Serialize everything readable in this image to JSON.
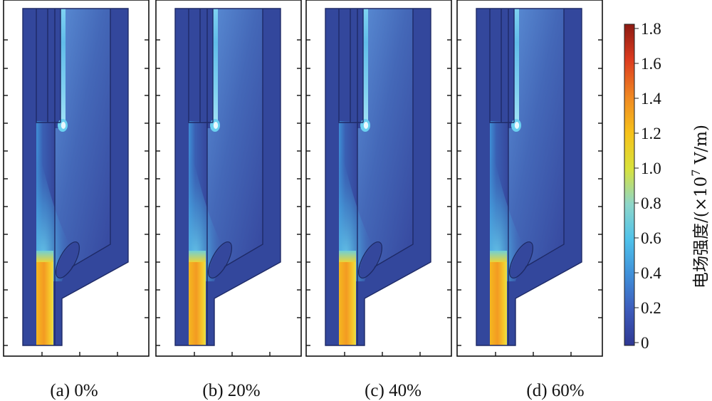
{
  "panels": [
    {
      "caption": "(a) 0%"
    },
    {
      "caption": "(b) 20%"
    },
    {
      "caption": "(c) 40%"
    },
    {
      "caption": "(d) 60%"
    }
  ],
  "colorbar": {
    "label_main": "电场强度/(×10",
    "label_exp": "7",
    "label_unit": " V/m)",
    "ticks": [
      "1.8",
      "1.6",
      "1.4",
      "1.2",
      "1.0",
      "0.8",
      "0.6",
      "0.4",
      "0.2",
      "0"
    ],
    "colormap": [
      "#2f3893",
      "#3d5bbb",
      "#3f8fd9",
      "#4fc2ea",
      "#8ed6c9",
      "#d8e23c",
      "#f6c21a",
      "#f08a22",
      "#dc3b1f",
      "#8c1a12"
    ]
  },
  "colors": {
    "field_low": "#33479c",
    "field_mid": "#4a7fcf",
    "field_high": "#6fd3ef",
    "hot_core": "#f3b224",
    "frame": "#111111"
  }
}
